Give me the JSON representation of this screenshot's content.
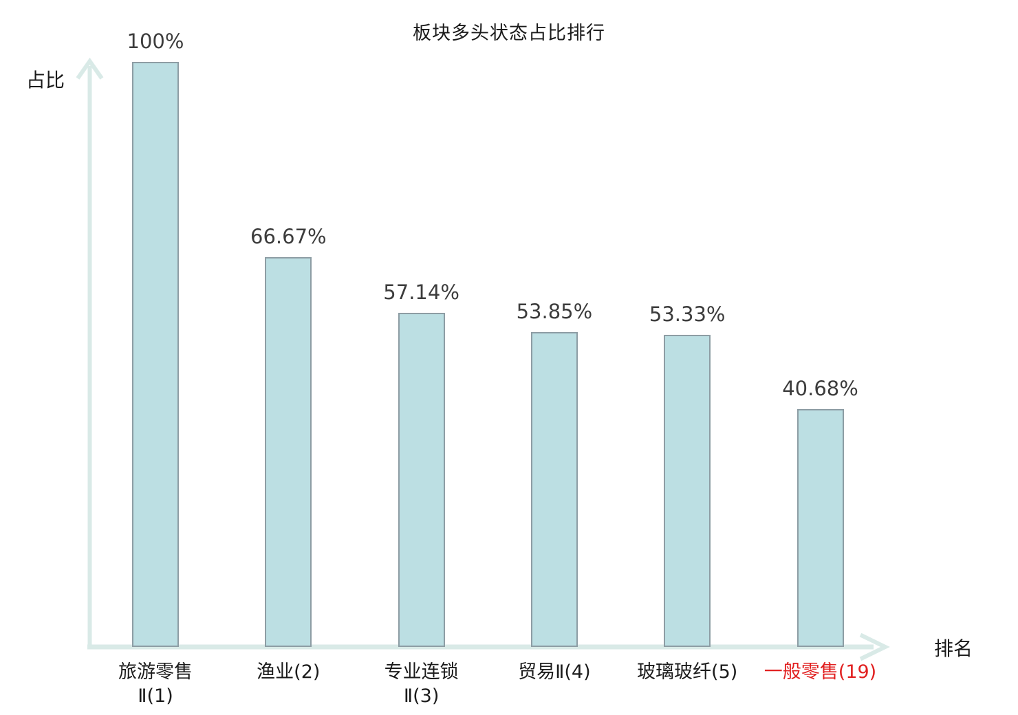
{
  "chart_data": {
    "type": "bar",
    "title": "板块多头状态占比排行",
    "xlabel": "排名",
    "ylabel": "占比",
    "ylim": [
      0,
      100
    ],
    "grid": false,
    "legend": null,
    "categories": [
      "旅游零售Ⅱ(1)",
      "渔业(2)",
      "专业连锁Ⅱ(3)",
      "贸易Ⅱ(4)",
      "玻璃玻纤(5)",
      "一般零售(19)"
    ],
    "category_lines": [
      [
        "旅游零售",
        "Ⅱ(1)"
      ],
      [
        "渔业(2)"
      ],
      [
        "专业连锁",
        "Ⅱ(3)"
      ],
      [
        "贸易Ⅱ(4)"
      ],
      [
        "玻璃玻纤(5)"
      ],
      [
        "一般零售(19)"
      ]
    ],
    "values": [
      100,
      66.67,
      57.14,
      53.85,
      53.33,
      40.68
    ],
    "value_labels": [
      "100%",
      "66.67%",
      "57.14%",
      "53.85%",
      "53.33%",
      "40.68%"
    ],
    "highlighted_index": 5,
    "colors": {
      "bar_fill": "#bcdfe3",
      "bar_border": "#8d9da4",
      "axis": "#d9eae7",
      "value_label": "#3c3c3c",
      "category_label": "#1b1b1b",
      "highlight_label": "#e12020"
    }
  }
}
